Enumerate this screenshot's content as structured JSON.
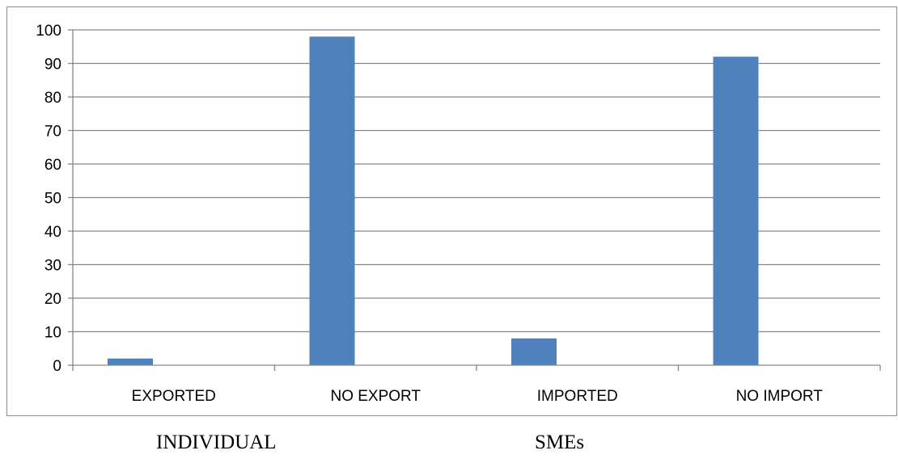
{
  "chart_data": {
    "type": "bar",
    "categories": [
      "EXPORTED",
      "NO EXPORT",
      "IMPORTED",
      "NO IMPORT"
    ],
    "values": [
      2,
      98,
      8,
      92
    ],
    "ylim": [
      0,
      100
    ],
    "yticks": [
      0,
      10,
      20,
      30,
      40,
      50,
      60,
      70,
      80,
      90,
      100
    ],
    "grid": true,
    "bar_color": "#4f81bd",
    "group_labels": [
      "INDIVIDUAL",
      "SMEs"
    ]
  }
}
